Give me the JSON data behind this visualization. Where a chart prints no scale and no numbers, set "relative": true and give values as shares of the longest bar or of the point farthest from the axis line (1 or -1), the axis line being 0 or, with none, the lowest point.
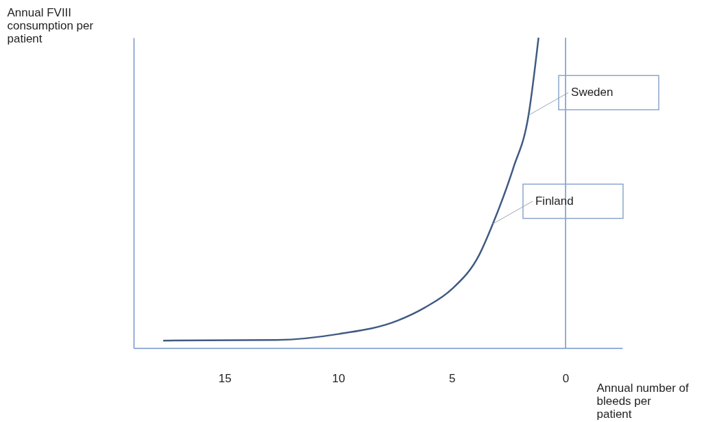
{
  "chart_data": {
    "type": "line",
    "relative": true,
    "xlabel": "Annual number of bleeds per patient",
    "ylabel": "Annual FVIII consumption per patient",
    "xlim": [
      19,
      -2.5
    ],
    "xticks": [
      15,
      10,
      5,
      0
    ],
    "series": [
      {
        "color": "#3f5a82",
        "x": [
          17.7,
          12.7,
          10,
          7.4,
          6.2,
          5,
          3.8,
          3.2,
          2.3,
          1.63,
          1.19
        ],
        "values": [
          0.024,
          0.026,
          0.045,
          0.088,
          0.13,
          0.19,
          0.3,
          0.4,
          0.58,
          0.75,
          1
        ]
      }
    ],
    "ref_lines": [
      {
        "axis": "x",
        "value": 0,
        "color": "#6f93c8"
      }
    ],
    "annotations": [
      {
        "text": "Sweden",
        "x": 1.63,
        "y": 0.75
      },
      {
        "text": "Finland",
        "x": 3.2,
        "y": 0.4
      }
    ],
    "grid": false
  }
}
